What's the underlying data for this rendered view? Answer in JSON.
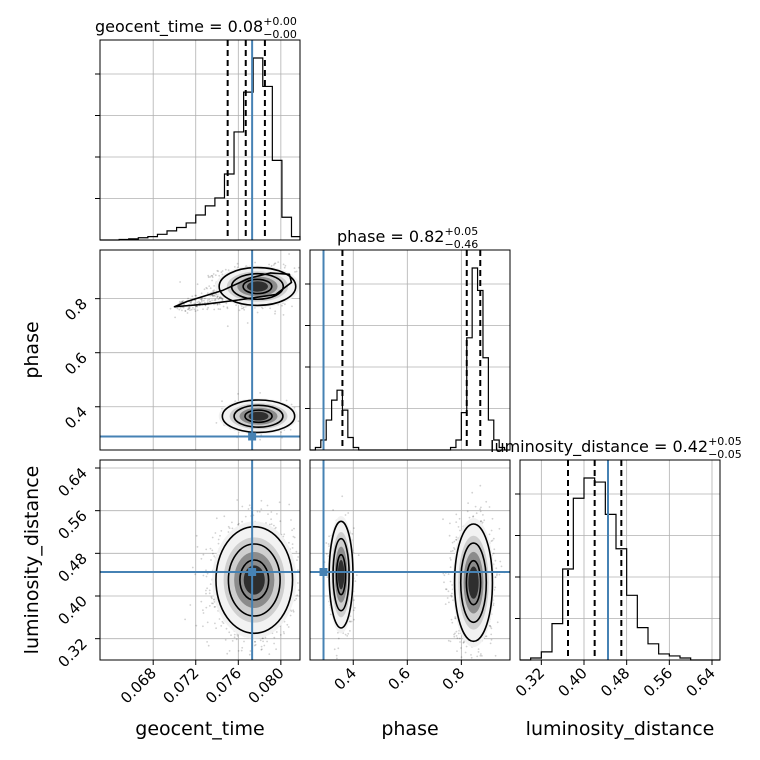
{
  "chart_data": {
    "type": "corner",
    "parameters": [
      "geocent_time",
      "phase",
      "luminosity_distance"
    ],
    "truths": {
      "geocent_time": 0.0773,
      "phase": 0.29,
      "luminosity_distance": 0.445
    },
    "ranges": {
      "geocent_time": [
        0.063,
        0.0818
      ],
      "phase": [
        0.24,
        0.98
      ],
      "luminosity_distance": [
        0.28,
        0.655
      ]
    },
    "ticks": {
      "geocent_time": [
        "0.068",
        "0.072",
        "0.076",
        "0.080"
      ],
      "phase": [
        "0.4",
        "0.6",
        "0.8"
      ],
      "luminosity_distance": [
        "0.32",
        "0.40",
        "0.48",
        "0.56",
        "0.64"
      ]
    },
    "titles": [
      {
        "param": "geocent_time",
        "text": "geocent_time = 0.08",
        "plus": "+0.00",
        "minus": "−0.00"
      },
      {
        "param": "phase",
        "text": "phase = 0.82",
        "plus": "+0.05",
        "minus": "−0.46"
      },
      {
        "param": "luminosity_distance",
        "text": "luminosity_distance = 0.42",
        "plus": "+0.05",
        "minus": "−0.05"
      }
    ],
    "quantiles": {
      "geocent_time": [
        0.075,
        0.0767,
        0.0785
      ],
      "phase": [
        0.36,
        0.82,
        0.87
      ],
      "luminosity_distance": [
        0.37,
        0.42,
        0.47
      ]
    },
    "histograms": {
      "geocent_time": {
        "edges": [
          0.063,
          0.0639,
          0.0648,
          0.0657,
          0.0666,
          0.0675,
          0.0684,
          0.0693,
          0.0702,
          0.0711,
          0.072,
          0.0729,
          0.0738,
          0.0747,
          0.0756,
          0.0765,
          0.0774,
          0.0783,
          0.0792,
          0.0801,
          0.081,
          0.0818
        ],
        "counts": [
          0,
          0,
          0.5,
          1,
          2,
          3,
          5,
          8,
          11,
          15,
          22,
          30,
          37,
          58,
          95,
          130,
          160,
          135,
          70,
          20,
          3
        ]
      },
      "phase": {
        "edges": [
          0.24,
          0.26,
          0.28,
          0.3,
          0.32,
          0.34,
          0.36,
          0.38,
          0.4,
          0.42,
          0.44,
          0.46,
          0.48,
          0.5,
          0.52,
          0.54,
          0.56,
          0.58,
          0.6,
          0.62,
          0.64,
          0.66,
          0.68,
          0.7,
          0.72,
          0.74,
          0.76,
          0.78,
          0.8,
          0.82,
          0.84,
          0.86,
          0.88,
          0.9,
          0.92,
          0.94,
          0.96,
          0.98
        ],
        "counts": [
          0,
          1,
          4,
          12,
          20,
          24,
          16,
          5,
          1,
          0,
          0,
          0,
          0,
          0,
          0,
          0,
          0,
          0,
          0,
          0,
          0,
          0,
          0,
          0,
          0,
          0,
          1,
          4,
          15,
          45,
          73,
          64,
          37,
          12,
          4,
          1,
          0,
          0
        ]
      },
      "luminosity_distance": {
        "edges": [
          0.28,
          0.3,
          0.32,
          0.34,
          0.36,
          0.38,
          0.4,
          0.42,
          0.44,
          0.46,
          0.48,
          0.5,
          0.52,
          0.54,
          0.56,
          0.58,
          0.6,
          0.62,
          0.64,
          0.655
        ],
        "counts": [
          0,
          1,
          4,
          18,
          45,
          80,
          90,
          88,
          72,
          55,
          32,
          16,
          8,
          3,
          2,
          1,
          0,
          0,
          0
        ]
      }
    },
    "scatter": {
      "phase_vs_geocent_time": {
        "clusters": [
          {
            "cx": 0.0778,
            "cy": 0.845,
            "sx": 0.0018,
            "sy": 0.035,
            "weight": 0.72
          },
          {
            "cx": 0.074,
            "cy": 0.8,
            "sx": 0.0022,
            "sy": 0.03,
            "weight": 0.12
          },
          {
            "cx": 0.0779,
            "cy": 0.365,
            "sx": 0.0017,
            "sy": 0.03,
            "weight": 0.16
          }
        ],
        "contour_levels": [
          {
            "shape": "upper",
            "outer": [
              [
                0.07,
                0.77
              ],
              [
                0.0712,
                0.79
              ],
              [
                0.0745,
                0.83
              ],
              [
                0.077,
                0.875
              ],
              [
                0.079,
                0.895
              ],
              [
                0.0808,
                0.89
              ],
              [
                0.081,
                0.86
              ],
              [
                0.0795,
                0.815
              ],
              [
                0.076,
                0.795
              ],
              [
                0.073,
                0.78
              ]
            ]
          }
        ]
      },
      "luminosity_distance_vs_geocent_time": {
        "clusters": [
          {
            "cx": 0.0775,
            "cy": 0.43,
            "sx": 0.0018,
            "sy": 0.05,
            "weight": 1.0
          }
        ]
      },
      "luminosity_distance_vs_phase": {
        "clusters": [
          {
            "cx": 0.845,
            "cy": 0.425,
            "sx": 0.035,
            "sy": 0.055,
            "weight": 0.75
          },
          {
            "cx": 0.355,
            "cy": 0.44,
            "sx": 0.022,
            "sy": 0.05,
            "weight": 0.25
          }
        ]
      }
    }
  }
}
